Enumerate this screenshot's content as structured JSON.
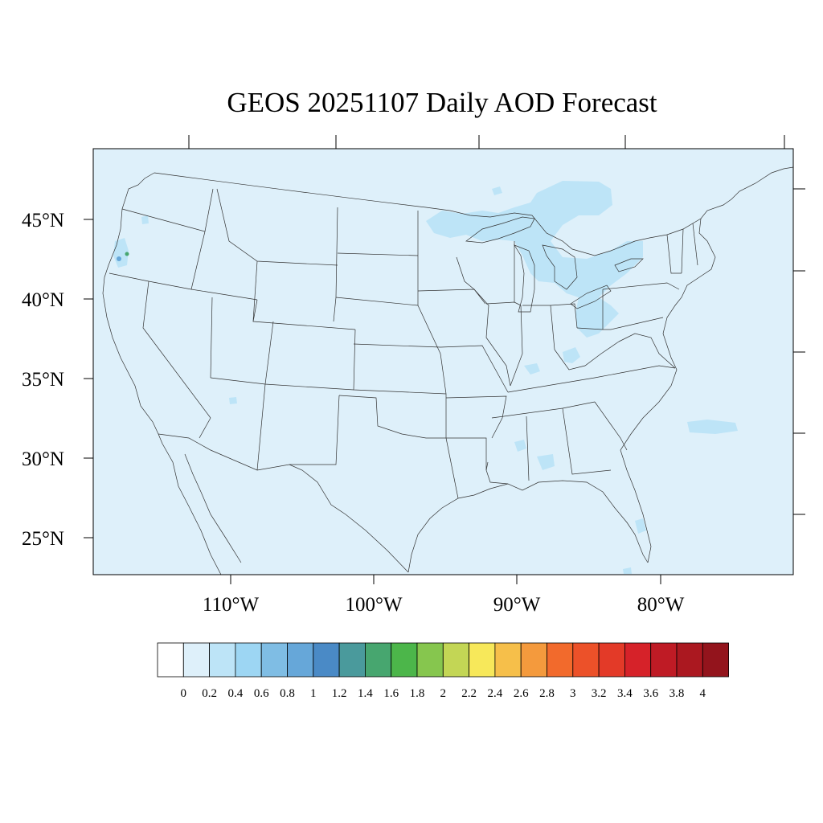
{
  "title": "GEOS 20251107 Daily AOD Forecast",
  "lat_labels": [
    "45°N",
    "40°N",
    "35°N",
    "30°N",
    "25°N"
  ],
  "lon_labels": [
    "110°W",
    "100°W",
    "90°W",
    "80°W"
  ],
  "colorbar": {
    "tick_labels": [
      "0",
      "0.2",
      "0.4",
      "0.6",
      "0.8",
      "1",
      "1.2",
      "1.4",
      "1.6",
      "1.8",
      "2",
      "2.2",
      "2.4",
      "2.6",
      "2.8",
      "3",
      "3.2",
      "3.4",
      "3.6",
      "3.8",
      "4"
    ],
    "colors": [
      "#ffffff",
      "#def0fa",
      "#bde4f7",
      "#9dd6f3",
      "#7fbde4",
      "#66a7d9",
      "#4a8ac6",
      "#4a9a9c",
      "#47a66f",
      "#4cb64a",
      "#86c64e",
      "#c3d655",
      "#f7e85a",
      "#f6bf4a",
      "#f49a3d",
      "#f26a2c",
      "#ec5129",
      "#e33a28",
      "#d62229",
      "#bf1b25",
      "#ab1820",
      "#93141c"
    ]
  },
  "map_colors": {
    "ocean_land_bg": "#def0fa",
    "plume": "#bde4f7",
    "hotspot_blue": "#66a7d9",
    "hotspot_green": "#47a66f",
    "boundary": "#333333"
  }
}
